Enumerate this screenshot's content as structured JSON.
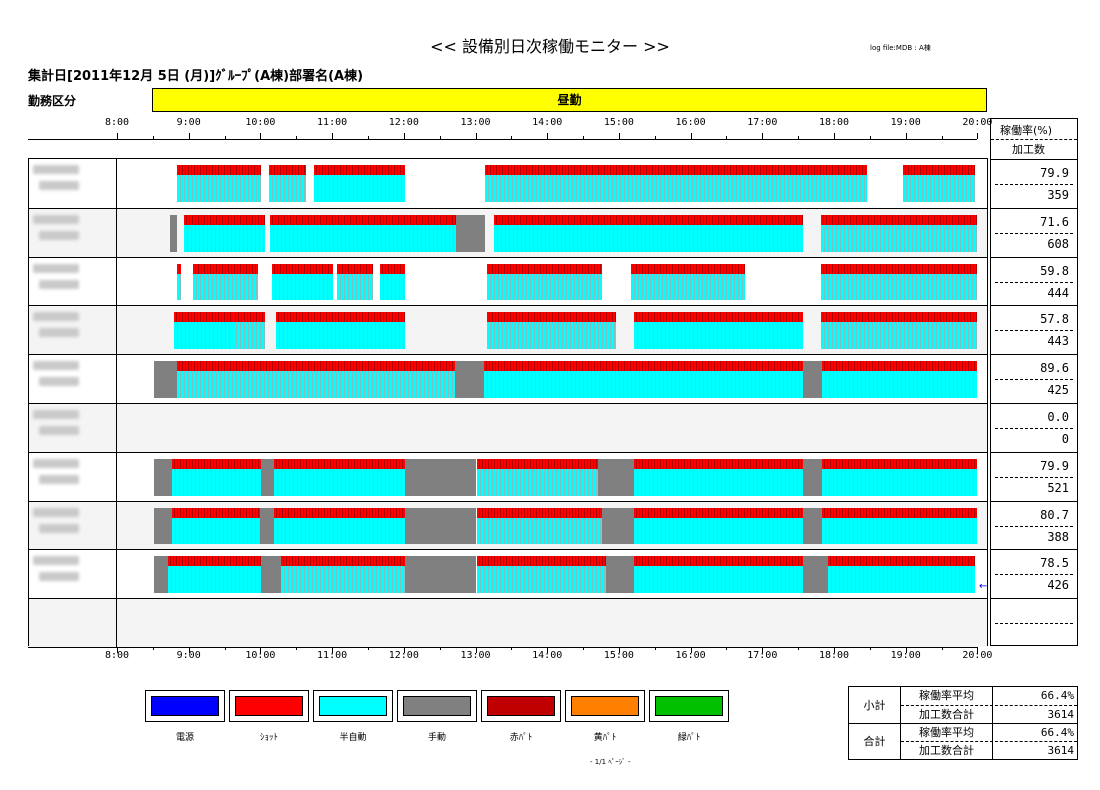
{
  "header": {
    "title": "<< 設備別日次稼働モニター >>",
    "log_file": "log file:MDB : A棟",
    "date_line": "集計日[2011年12月 5日 (月)]ｸﾞﾙｰﾌﾟ(A棟)部署名(A棟)"
  },
  "shift": {
    "label": "勤務区分",
    "name": "昼勤"
  },
  "timeline": {
    "ticks": [
      "8:00",
      "9:00",
      "10:00",
      "11:00",
      "12:00",
      "13:00",
      "14:00",
      "15:00",
      "16:00",
      "17:00",
      "18:00",
      "19:00",
      "20:00"
    ]
  },
  "columns": {
    "rate": "稼働率(%)",
    "count": "加工数"
  },
  "rows": [
    {
      "rate": "79.9",
      "count": "359"
    },
    {
      "rate": "71.6",
      "count": "608"
    },
    {
      "rate": "59.8",
      "count": "444"
    },
    {
      "rate": "57.8",
      "count": "443"
    },
    {
      "rate": "89.6",
      "count": "425"
    },
    {
      "rate": "0.0",
      "count": "0"
    },
    {
      "rate": "79.9",
      "count": "521"
    },
    {
      "rate": "80.7",
      "count": "388"
    },
    {
      "rate": "78.5",
      "count": "426"
    },
    {
      "rate": "",
      "count": ""
    }
  ],
  "legend": [
    {
      "label": "電源",
      "color": "#0000ff"
    },
    {
      "label": "ｼｮｯﾄ",
      "color": "#ff0000"
    },
    {
      "label": "半自動",
      "color": "#00ffff"
    },
    {
      "label": "手動",
      "color": "#808080"
    },
    {
      "label": "赤ﾊﾟﾄ",
      "color": "#c00000"
    },
    {
      "label": "黄ﾊﾟﾄ",
      "color": "#ff8000"
    },
    {
      "label": "緑ﾊﾟﾄ",
      "color": "#00c000"
    }
  ],
  "page": "- 1/1 ﾍﾟｰｼﾞ -",
  "summary": {
    "subtotal_label": "小計",
    "total_label": "合計",
    "rate_avg_label": "稼働率平均",
    "count_sum_label": "加工数合計",
    "subtotal_rate": "66.4%",
    "subtotal_count": "3614",
    "total_rate": "66.4%",
    "total_count": "3614"
  }
}
